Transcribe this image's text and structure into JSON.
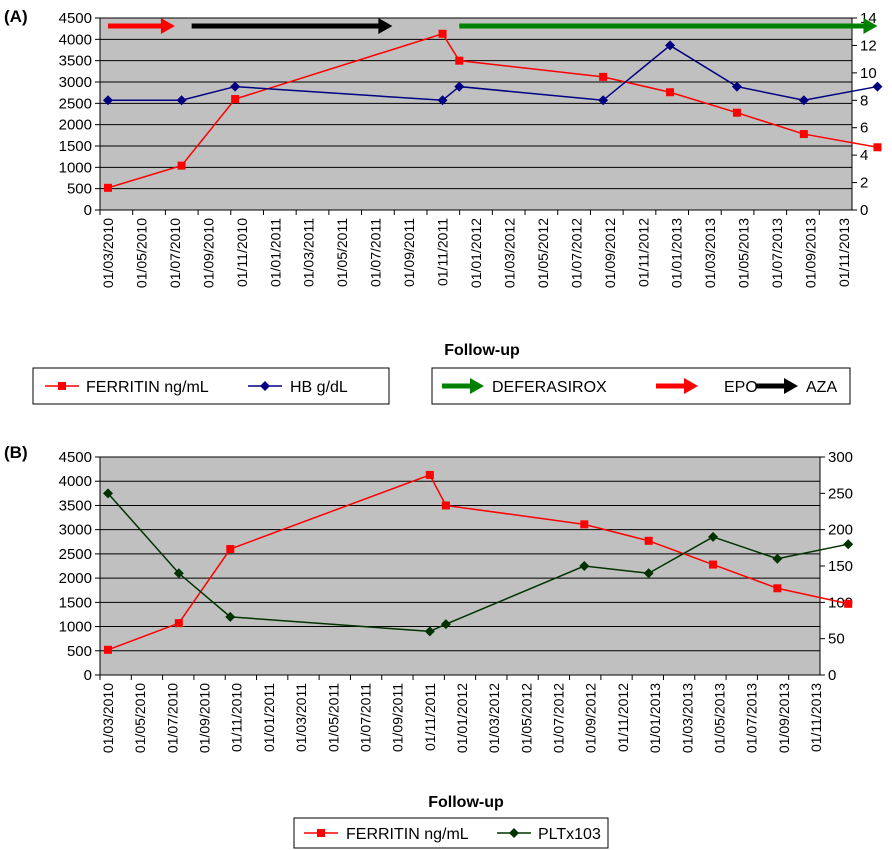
{
  "colors": {
    "plot_bg": "#C0C0C0",
    "ferritin": "#FF0000",
    "hb": "#000080",
    "plt": "#003300",
    "deferasirox": "#008000",
    "epo": "#FF0000",
    "aza": "#000000"
  },
  "chart_data": [
    {
      "type": "line",
      "panel_label": "(A)",
      "xlabel": "Follow-up",
      "categories": [
        "01/03/2010",
        "01/05/2010",
        "01/07/2010",
        "01/09/2010",
        "01/11/2010",
        "01/01/2011",
        "01/03/2011",
        "01/05/2011",
        "01/07/2011",
        "01/09/2011",
        "01/11/2011",
        "01/01/2012",
        "01/03/2012",
        "01/05/2012",
        "01/07/2012",
        "01/09/2012",
        "01/11/2012",
        "01/01/2013",
        "01/03/2013",
        "01/05/2013",
        "01/07/2013",
        "01/09/2013",
        "01/11/2013"
      ],
      "y_left": {
        "min": 0,
        "max": 4500,
        "step": 500
      },
      "y_right": {
        "min": 0,
        "max": 14,
        "step": 2
      },
      "grid": true,
      "series": [
        {
          "name": "FERRITIN ng/mL",
          "axis": "left",
          "color": "#FF0000",
          "marker": "square",
          "points": [
            [
              0,
              520
            ],
            [
              2.2,
              1040
            ],
            [
              3.8,
              2600
            ],
            [
              10,
              4130
            ],
            [
              10.5,
              3500
            ],
            [
              14.8,
              3120
            ],
            [
              16.8,
              2760
            ],
            [
              18.8,
              2280
            ],
            [
              20.8,
              1780
            ],
            [
              23,
              1470
            ]
          ]
        },
        {
          "name": "HB g/dL",
          "axis": "right",
          "color": "#000080",
          "marker": "diamond",
          "points": [
            [
              0,
              8
            ],
            [
              2.2,
              8
            ],
            [
              3.8,
              9
            ],
            [
              10,
              8
            ],
            [
              10.5,
              9
            ],
            [
              14.8,
              8
            ],
            [
              16.8,
              12
            ],
            [
              18.8,
              9
            ],
            [
              20.8,
              8
            ],
            [
              23,
              9
            ]
          ]
        }
      ],
      "arrows": [
        {
          "name": "EPO",
          "color": "#FF0000",
          "from": 0,
          "to": 2
        },
        {
          "name": "AZA",
          "color": "#000000",
          "from": 2.5,
          "to": 8.5
        },
        {
          "name": "DEFERASIROX",
          "color": "#008000",
          "from": 10.5,
          "to": 23
        }
      ],
      "legend": [
        "FERRITIN ng/mL",
        "HB g/dL"
      ],
      "arrow_legend": [
        "DEFERASIROX",
        "EPO",
        "AZA"
      ]
    },
    {
      "type": "line",
      "panel_label": "(B)",
      "xlabel": "Follow-up",
      "categories": [
        "01/03/2010",
        "01/05/2010",
        "01/07/2010",
        "01/09/2010",
        "01/11/2010",
        "01/01/2011",
        "01/03/2011",
        "01/05/2011",
        "01/07/2011",
        "01/09/2011",
        "01/11/2011",
        "01/01/2012",
        "01/03/2012",
        "01/05/2012",
        "01/07/2012",
        "01/09/2012",
        "01/11/2012",
        "01/01/2013",
        "01/03/2013",
        "01/05/2013",
        "01/07/2013",
        "01/09/2013",
        "01/11/2013"
      ],
      "y_left": {
        "min": 0,
        "max": 4500,
        "step": 500
      },
      "y_right": {
        "min": 0,
        "max": 300,
        "step": 50
      },
      "grid": true,
      "series": [
        {
          "name": "FERRITIN ng/mL",
          "axis": "left",
          "color": "#FF0000",
          "marker": "square",
          "points": [
            [
              0,
              520
            ],
            [
              2.2,
              1070
            ],
            [
              3.8,
              2600
            ],
            [
              10,
              4130
            ],
            [
              10.5,
              3500
            ],
            [
              14.8,
              3110
            ],
            [
              16.8,
              2770
            ],
            [
              18.8,
              2280
            ],
            [
              20.8,
              1790
            ],
            [
              23,
              1470
            ]
          ]
        },
        {
          "name": "PLTx103",
          "axis": "right",
          "color": "#003300",
          "marker": "diamond",
          "points": [
            [
              0,
              250
            ],
            [
              2.2,
              140
            ],
            [
              3.8,
              80
            ],
            [
              10,
              60
            ],
            [
              10.5,
              70
            ],
            [
              14.8,
              150
            ],
            [
              16.8,
              140
            ],
            [
              18.8,
              190
            ],
            [
              20.8,
              160
            ],
            [
              23,
              180
            ]
          ]
        }
      ],
      "legend": [
        "FERRITIN ng/mL",
        "PLTx103"
      ]
    }
  ]
}
